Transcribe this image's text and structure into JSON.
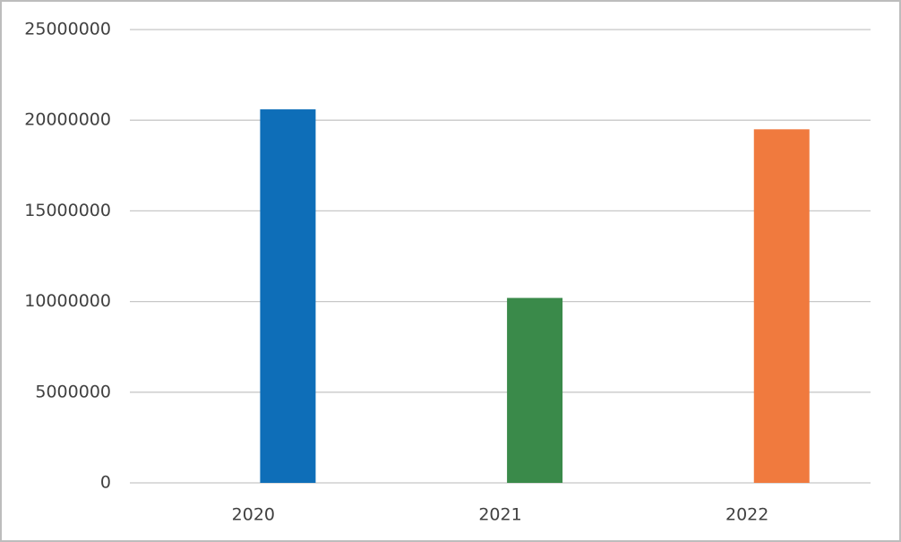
{
  "chart_data": {
    "type": "bar",
    "categories": [
      "2020",
      "2021",
      "2022"
    ],
    "values": [
      20600000,
      10200000,
      19500000
    ],
    "colors": [
      "#0e6eb8",
      "#3a8a4a",
      "#f07a3e"
    ],
    "ylim": [
      0,
      25000000
    ],
    "yticks": [
      0,
      5000000,
      10000000,
      15000000,
      20000000,
      25000000
    ],
    "grid": true
  }
}
